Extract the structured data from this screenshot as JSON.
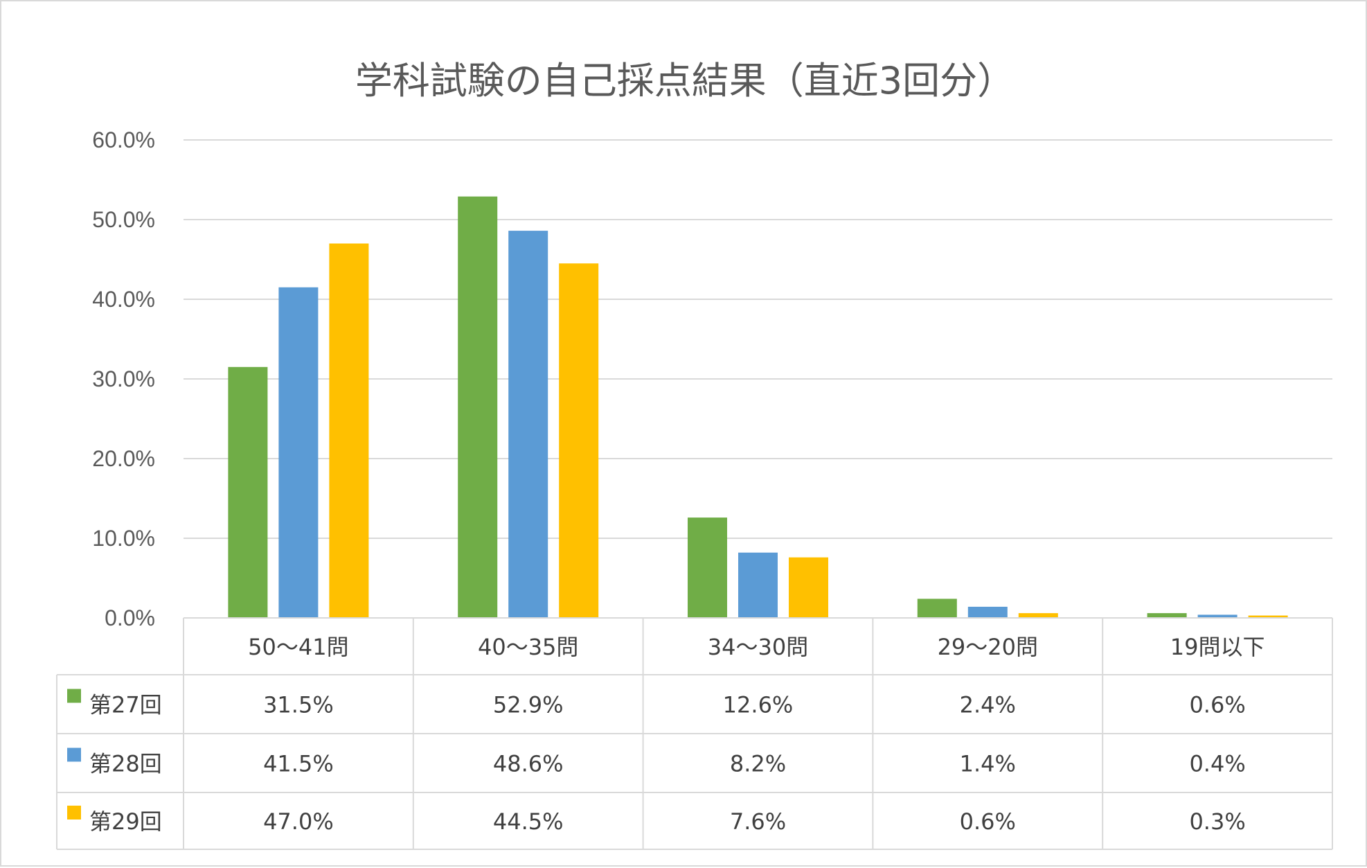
{
  "chart_data": {
    "type": "bar",
    "title": "学科試験の自己採点結果（直近3回分）",
    "categories": [
      "50～41問",
      "40～35問",
      "34～30問",
      "29～20問",
      "19問以下"
    ],
    "series": [
      {
        "name": "第27回",
        "color": "#70ad47",
        "values": [
          31.5,
          52.9,
          12.6,
          2.4,
          0.6
        ]
      },
      {
        "name": "第28回",
        "color": "#5b9bd5",
        "values": [
          41.5,
          48.6,
          8.2,
          1.4,
          0.4
        ]
      },
      {
        "name": "第29回",
        "color": "#ffc000",
        "values": [
          47.0,
          44.5,
          7.6,
          0.6,
          0.3
        ]
      }
    ],
    "table_values": [
      [
        "31.5%",
        "52.9%",
        "12.6%",
        "2.4%",
        "0.6%"
      ],
      [
        "41.5%",
        "48.6%",
        "8.2%",
        "1.4%",
        "0.4%"
      ],
      [
        "47.0%",
        "44.5%",
        "7.6%",
        "0.6%",
        "0.3%"
      ]
    ],
    "ylim": [
      0,
      60
    ],
    "yticks": [
      "0.0%",
      "10.0%",
      "20.0%",
      "30.0%",
      "40.0%",
      "50.0%",
      "60.0%"
    ],
    "grid": true,
    "legend": "data-table"
  }
}
